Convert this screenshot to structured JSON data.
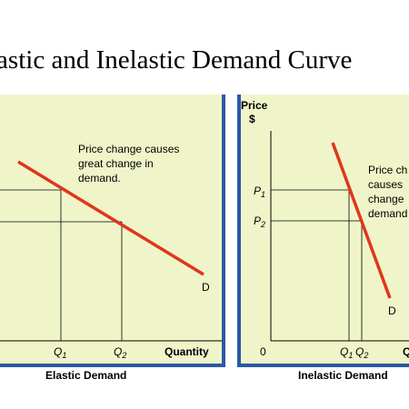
{
  "title": "lastic and Inelastic Demand Curve",
  "colors": {
    "panel_bg": "#f0f5c9",
    "border": "#2b58a4",
    "demand": "#e0361b",
    "grid": "#000000"
  },
  "elastic": {
    "annotation": [
      "Price change causes",
      "great change in",
      "demand."
    ],
    "curve_label": "D",
    "q1": "Q",
    "q1_sub": "1",
    "q2": "Q",
    "q2_sub": "2",
    "x_axis_label": "Quantity",
    "caption": "Elastic Demand"
  },
  "inelastic": {
    "y_axis_label_1": "Price",
    "y_axis_label_2": "$",
    "p1": "P",
    "p1_sub": "1",
    "p2": "P",
    "p2_sub": "2",
    "origin": "0",
    "annotation": [
      "Price ch",
      "causes",
      "change",
      "demand"
    ],
    "curve_label": "D",
    "q1": "Q",
    "q1_sub": "1",
    "q2": "Q",
    "q2_sub": "2",
    "x_axis_label": "Q",
    "caption": "Inelastic Demand"
  }
}
